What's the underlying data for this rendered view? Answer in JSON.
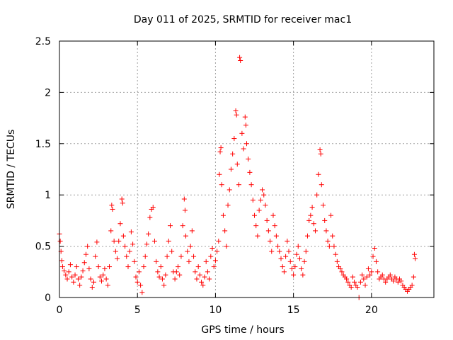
{
  "chart_data": {
    "type": "scatter",
    "title": "Day 011 of 2025, SRMTID for receiver mac1",
    "xlabel": "GPS time / hours",
    "ylabel": "SRMTID / TECUs",
    "xlim": [
      0,
      24
    ],
    "ylim": [
      0,
      2.5
    ],
    "xticks": [
      0,
      5,
      10,
      15,
      20
    ],
    "xtick_labels": [
      "0",
      "5",
      "10",
      "15",
      "20"
    ],
    "yticks": [
      0,
      0.5,
      1,
      1.5,
      2,
      2.5
    ],
    "ytick_labels": [
      "0",
      "0.5",
      "1",
      "1.5",
      "2",
      "2.5"
    ],
    "grid": true,
    "marker": "+",
    "marker_color": "#ff0000",
    "series": [
      {
        "name": "SRMTID",
        "points": [
          [
            0.0,
            0.62
          ],
          [
            0.05,
            0.55
          ],
          [
            0.1,
            0.45
          ],
          [
            0.15,
            0.36
          ],
          [
            0.2,
            0.3
          ],
          [
            0.3,
            0.26
          ],
          [
            0.4,
            0.22
          ],
          [
            0.5,
            0.18
          ],
          [
            0.6,
            0.25
          ],
          [
            0.7,
            0.32
          ],
          [
            0.8,
            0.2
          ],
          [
            0.9,
            0.15
          ],
          [
            1.0,
            0.22
          ],
          [
            1.1,
            0.3
          ],
          [
            1.2,
            0.18
          ],
          [
            1.3,
            0.12
          ],
          [
            1.4,
            0.2
          ],
          [
            1.5,
            0.26
          ],
          [
            1.6,
            0.34
          ],
          [
            1.7,
            0.42
          ],
          [
            1.8,
            0.5
          ],
          [
            1.9,
            0.28
          ],
          [
            2.0,
            0.18
          ],
          [
            2.1,
            0.1
          ],
          [
            2.2,
            0.15
          ],
          [
            2.3,
            0.4
          ],
          [
            2.4,
            0.54
          ],
          [
            2.5,
            0.3
          ],
          [
            2.6,
            0.2
          ],
          [
            2.7,
            0.16
          ],
          [
            2.8,
            0.22
          ],
          [
            2.9,
            0.28
          ],
          [
            3.0,
            0.18
          ],
          [
            3.1,
            0.12
          ],
          [
            3.2,
            0.3
          ],
          [
            3.3,
            0.65
          ],
          [
            3.35,
            0.9
          ],
          [
            3.4,
            0.86
          ],
          [
            3.5,
            0.55
          ],
          [
            3.6,
            0.45
          ],
          [
            3.7,
            0.38
          ],
          [
            3.8,
            0.55
          ],
          [
            3.9,
            0.72
          ],
          [
            4.0,
            0.96
          ],
          [
            4.05,
            0.92
          ],
          [
            4.1,
            0.6
          ],
          [
            4.2,
            0.5
          ],
          [
            4.3,
            0.4
          ],
          [
            4.4,
            0.3
          ],
          [
            4.5,
            0.45
          ],
          [
            4.6,
            0.64
          ],
          [
            4.7,
            0.52
          ],
          [
            4.8,
            0.35
          ],
          [
            4.9,
            0.2
          ],
          [
            5.0,
            0.15
          ],
          [
            5.1,
            0.25
          ],
          [
            5.2,
            0.12
          ],
          [
            5.3,
            0.05
          ],
          [
            5.4,
            0.3
          ],
          [
            5.5,
            0.4
          ],
          [
            5.6,
            0.52
          ],
          [
            5.7,
            0.62
          ],
          [
            5.8,
            0.78
          ],
          [
            5.9,
            0.86
          ],
          [
            6.0,
            0.88
          ],
          [
            6.1,
            0.55
          ],
          [
            6.2,
            0.35
          ],
          [
            6.3,
            0.25
          ],
          [
            6.4,
            0.2
          ],
          [
            6.5,
            0.3
          ],
          [
            6.6,
            0.18
          ],
          [
            6.7,
            0.12
          ],
          [
            6.8,
            0.22
          ],
          [
            6.9,
            0.4
          ],
          [
            7.0,
            0.55
          ],
          [
            7.1,
            0.7
          ],
          [
            7.2,
            0.45
          ],
          [
            7.3,
            0.25
          ],
          [
            7.4,
            0.18
          ],
          [
            7.5,
            0.25
          ],
          [
            7.6,
            0.3
          ],
          [
            7.7,
            0.22
          ],
          [
            7.8,
            0.4
          ],
          [
            7.9,
            0.7
          ],
          [
            8.0,
            0.96
          ],
          [
            8.05,
            0.85
          ],
          [
            8.1,
            0.6
          ],
          [
            8.2,
            0.45
          ],
          [
            8.3,
            0.35
          ],
          [
            8.4,
            0.5
          ],
          [
            8.5,
            0.65
          ],
          [
            8.6,
            0.4
          ],
          [
            8.7,
            0.25
          ],
          [
            8.8,
            0.18
          ],
          [
            8.9,
            0.3
          ],
          [
            9.0,
            0.22
          ],
          [
            9.1,
            0.15
          ],
          [
            9.2,
            0.12
          ],
          [
            9.3,
            0.2
          ],
          [
            9.4,
            0.35
          ],
          [
            9.5,
            0.25
          ],
          [
            9.6,
            0.18
          ],
          [
            9.7,
            0.4
          ],
          [
            9.8,
            0.48
          ],
          [
            9.9,
            0.3
          ],
          [
            10.0,
            0.36
          ],
          [
            10.1,
            0.45
          ],
          [
            10.2,
            0.55
          ],
          [
            10.25,
            1.2
          ],
          [
            10.3,
            1.42
          ],
          [
            10.35,
            1.46
          ],
          [
            10.4,
            1.1
          ],
          [
            10.5,
            0.8
          ],
          [
            10.6,
            0.65
          ],
          [
            10.7,
            0.5
          ],
          [
            10.8,
            0.9
          ],
          [
            10.9,
            1.05
          ],
          [
            11.0,
            1.25
          ],
          [
            11.1,
            1.4
          ],
          [
            11.2,
            1.55
          ],
          [
            11.3,
            1.82
          ],
          [
            11.35,
            1.78
          ],
          [
            11.4,
            1.3
          ],
          [
            11.5,
            1.1
          ],
          [
            11.55,
            2.34
          ],
          [
            11.6,
            2.31
          ],
          [
            11.7,
            1.6
          ],
          [
            11.8,
            1.45
          ],
          [
            11.9,
            1.76
          ],
          [
            11.95,
            1.68
          ],
          [
            12.0,
            1.5
          ],
          [
            12.1,
            1.35
          ],
          [
            12.2,
            1.22
          ],
          [
            12.3,
            1.1
          ],
          [
            12.4,
            0.95
          ],
          [
            12.5,
            0.8
          ],
          [
            12.6,
            0.7
          ],
          [
            12.7,
            0.6
          ],
          [
            12.8,
            0.85
          ],
          [
            12.9,
            0.95
          ],
          [
            13.0,
            1.05
          ],
          [
            13.1,
            1.0
          ],
          [
            13.2,
            0.9
          ],
          [
            13.3,
            0.75
          ],
          [
            13.4,
            0.65
          ],
          [
            13.5,
            0.55
          ],
          [
            13.6,
            0.45
          ],
          [
            13.7,
            0.8
          ],
          [
            13.8,
            0.7
          ],
          [
            13.9,
            0.6
          ],
          [
            14.0,
            0.5
          ],
          [
            14.1,
            0.45
          ],
          [
            14.2,
            0.38
          ],
          [
            14.3,
            0.3
          ],
          [
            14.4,
            0.25
          ],
          [
            14.5,
            0.4
          ],
          [
            14.6,
            0.55
          ],
          [
            14.7,
            0.45
          ],
          [
            14.8,
            0.35
          ],
          [
            14.9,
            0.28
          ],
          [
            15.0,
            0.22
          ],
          [
            15.1,
            0.3
          ],
          [
            15.2,
            0.42
          ],
          [
            15.3,
            0.5
          ],
          [
            15.4,
            0.38
          ],
          [
            15.5,
            0.28
          ],
          [
            15.6,
            0.22
          ],
          [
            15.7,
            0.35
          ],
          [
            15.8,
            0.45
          ],
          [
            15.9,
            0.6
          ],
          [
            16.0,
            0.75
          ],
          [
            16.1,
            0.8
          ],
          [
            16.2,
            0.88
          ],
          [
            16.3,
            0.72
          ],
          [
            16.4,
            0.65
          ],
          [
            16.5,
            1.0
          ],
          [
            16.6,
            1.2
          ],
          [
            16.7,
            1.44
          ],
          [
            16.75,
            1.4
          ],
          [
            16.8,
            1.1
          ],
          [
            16.9,
            0.9
          ],
          [
            17.0,
            0.75
          ],
          [
            17.1,
            0.65
          ],
          [
            17.2,
            0.55
          ],
          [
            17.3,
            0.5
          ],
          [
            17.4,
            0.8
          ],
          [
            17.5,
            0.6
          ],
          [
            17.6,
            0.5
          ],
          [
            17.7,
            0.42
          ],
          [
            17.8,
            0.35
          ],
          [
            17.9,
            0.3
          ],
          [
            18.0,
            0.28
          ],
          [
            18.1,
            0.25
          ],
          [
            18.2,
            0.22
          ],
          [
            18.3,
            0.2
          ],
          [
            18.4,
            0.18
          ],
          [
            18.5,
            0.15
          ],
          [
            18.6,
            0.12
          ],
          [
            18.7,
            0.1
          ],
          [
            18.8,
            0.2
          ],
          [
            18.9,
            0.15
          ],
          [
            19.0,
            0.12
          ],
          [
            19.1,
            0.1
          ],
          [
            19.2,
            0.0
          ],
          [
            19.3,
            0.15
          ],
          [
            19.4,
            0.22
          ],
          [
            19.5,
            0.18
          ],
          [
            19.6,
            0.12
          ],
          [
            19.7,
            0.2
          ],
          [
            19.8,
            0.28
          ],
          [
            19.9,
            0.22
          ],
          [
            20.0,
            0.25
          ],
          [
            20.1,
            0.4
          ],
          [
            20.2,
            0.48
          ],
          [
            20.3,
            0.35
          ],
          [
            20.4,
            0.25
          ],
          [
            20.5,
            0.18
          ],
          [
            20.6,
            0.2
          ],
          [
            20.7,
            0.22
          ],
          [
            20.8,
            0.18
          ],
          [
            20.9,
            0.15
          ],
          [
            21.0,
            0.18
          ],
          [
            21.1,
            0.2
          ],
          [
            21.2,
            0.22
          ],
          [
            21.3,
            0.18
          ],
          [
            21.4,
            0.16
          ],
          [
            21.5,
            0.2
          ],
          [
            21.6,
            0.18
          ],
          [
            21.7,
            0.15
          ],
          [
            21.8,
            0.18
          ],
          [
            21.9,
            0.16
          ],
          [
            22.0,
            0.12
          ],
          [
            22.1,
            0.1
          ],
          [
            22.2,
            0.08
          ],
          [
            22.3,
            0.06
          ],
          [
            22.4,
            0.08
          ],
          [
            22.5,
            0.1
          ],
          [
            22.6,
            0.12
          ],
          [
            22.7,
            0.2
          ],
          [
            22.75,
            0.42
          ],
          [
            22.8,
            0.38
          ]
        ]
      }
    ]
  }
}
